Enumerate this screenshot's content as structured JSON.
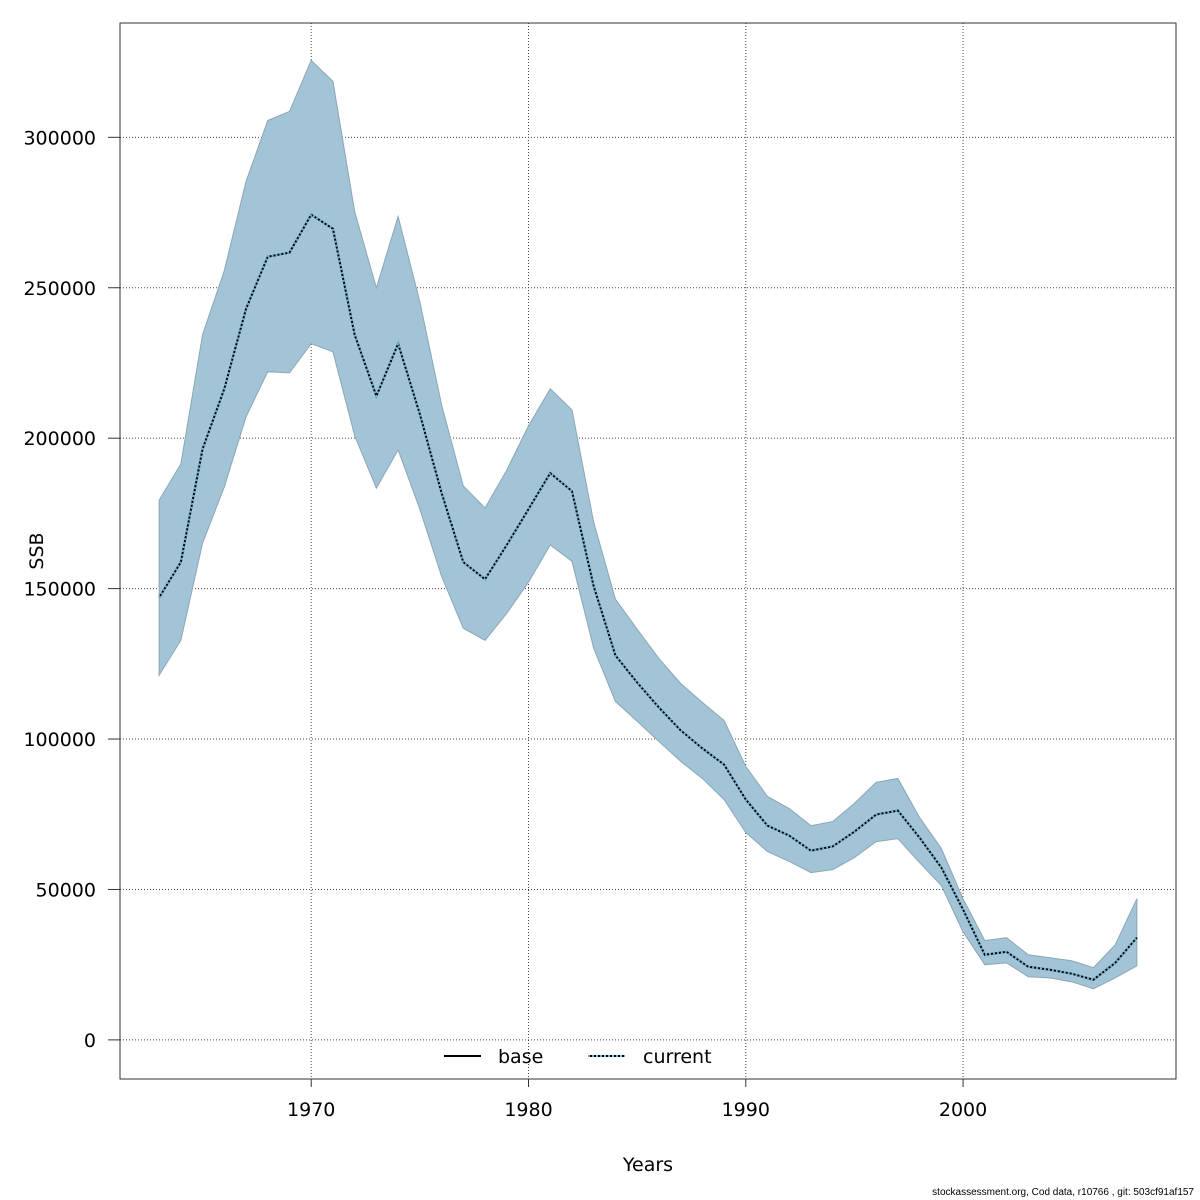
{
  "chart_data": {
    "type": "line",
    "xlabel": "Years",
    "ylabel": "SSB",
    "xlim": [
      1961.2,
      2009.8
    ],
    "ylim": [
      -13000,
      338000
    ],
    "grid": true,
    "xticks": [
      1970,
      1980,
      1990,
      2000
    ],
    "yticks": [
      0,
      50000,
      100000,
      150000,
      200000,
      250000,
      300000
    ],
    "x": [
      1963,
      1964,
      1965,
      1966,
      1967,
      1968,
      1969,
      1970,
      1971,
      1972,
      1973,
      1974,
      1975,
      1976,
      1977,
      1978,
      1979,
      1980,
      1981,
      1982,
      1983,
      1984,
      1985,
      1986,
      1987,
      1988,
      1989,
      1990,
      1991,
      1992,
      1993,
      1994,
      1995,
      1996,
      1997,
      1998,
      1999,
      2000,
      2001,
      2002,
      2003,
      2004,
      2005,
      2006,
      2007,
      2008
    ],
    "series": [
      {
        "name": "base",
        "style": "solid",
        "color": "#000000",
        "values": [
          147000,
          158800,
          196400,
          216400,
          243000,
          260300,
          261700,
          274300,
          269600,
          234400,
          214000,
          231400,
          208000,
          181800,
          158800,
          153100,
          164500,
          176400,
          188400,
          182400,
          150800,
          127800,
          118800,
          110500,
          102900,
          96900,
          91500,
          79900,
          71200,
          67900,
          62900,
          64300,
          69200,
          74900,
          76200,
          67200,
          57300,
          43300,
          28300,
          29300,
          24300,
          23300,
          22000,
          20000,
          25600,
          34000
        ]
      },
      {
        "name": "current",
        "style": "dotted",
        "color": "#6bb8d8",
        "values": [
          147000,
          158800,
          196400,
          216400,
          243000,
          260300,
          261700,
          274300,
          269600,
          234400,
          214000,
          231400,
          208000,
          181800,
          158800,
          153100,
          164500,
          176400,
          188400,
          182400,
          150800,
          127800,
          118800,
          110500,
          102900,
          96900,
          91500,
          79900,
          71200,
          67900,
          62900,
          64300,
          69200,
          74900,
          76200,
          67200,
          57300,
          43300,
          28300,
          29300,
          24300,
          23300,
          22000,
          20000,
          25600,
          34000
        ]
      }
    ],
    "band": {
      "color": "#a3c4d6",
      "upper": [
        179400,
        191400,
        234400,
        255700,
        285300,
        305600,
        308600,
        325600,
        318600,
        275300,
        250000,
        273700,
        245300,
        211100,
        184100,
        176800,
        189400,
        204100,
        216400,
        209400,
        172100,
        146500,
        136500,
        126800,
        118500,
        112200,
        106200,
        90900,
        80900,
        76900,
        71200,
        72600,
        78600,
        85600,
        86900,
        73900,
        63600,
        46900,
        33000,
        34000,
        28300,
        27300,
        26300,
        24000,
        31600,
        46900
      ],
      "lower": [
        121200,
        132800,
        165100,
        183800,
        207100,
        222100,
        221700,
        231400,
        228700,
        200800,
        183400,
        196100,
        176400,
        154100,
        136800,
        132800,
        141800,
        152100,
        164500,
        159100,
        130200,
        112500,
        105900,
        99200,
        92600,
        86900,
        79900,
        68900,
        62600,
        59300,
        55600,
        56600,
        60600,
        65900,
        66900,
        58900,
        51300,
        35900,
        25000,
        25600,
        21000,
        20600,
        19300,
        17000,
        20600,
        24600
      ]
    },
    "legend": {
      "placement": "bottom-center",
      "entries": [
        "base",
        "current"
      ]
    }
  },
  "footer": "stockassessment.org, Cod  data, r10766 , git: 503cf91af157"
}
